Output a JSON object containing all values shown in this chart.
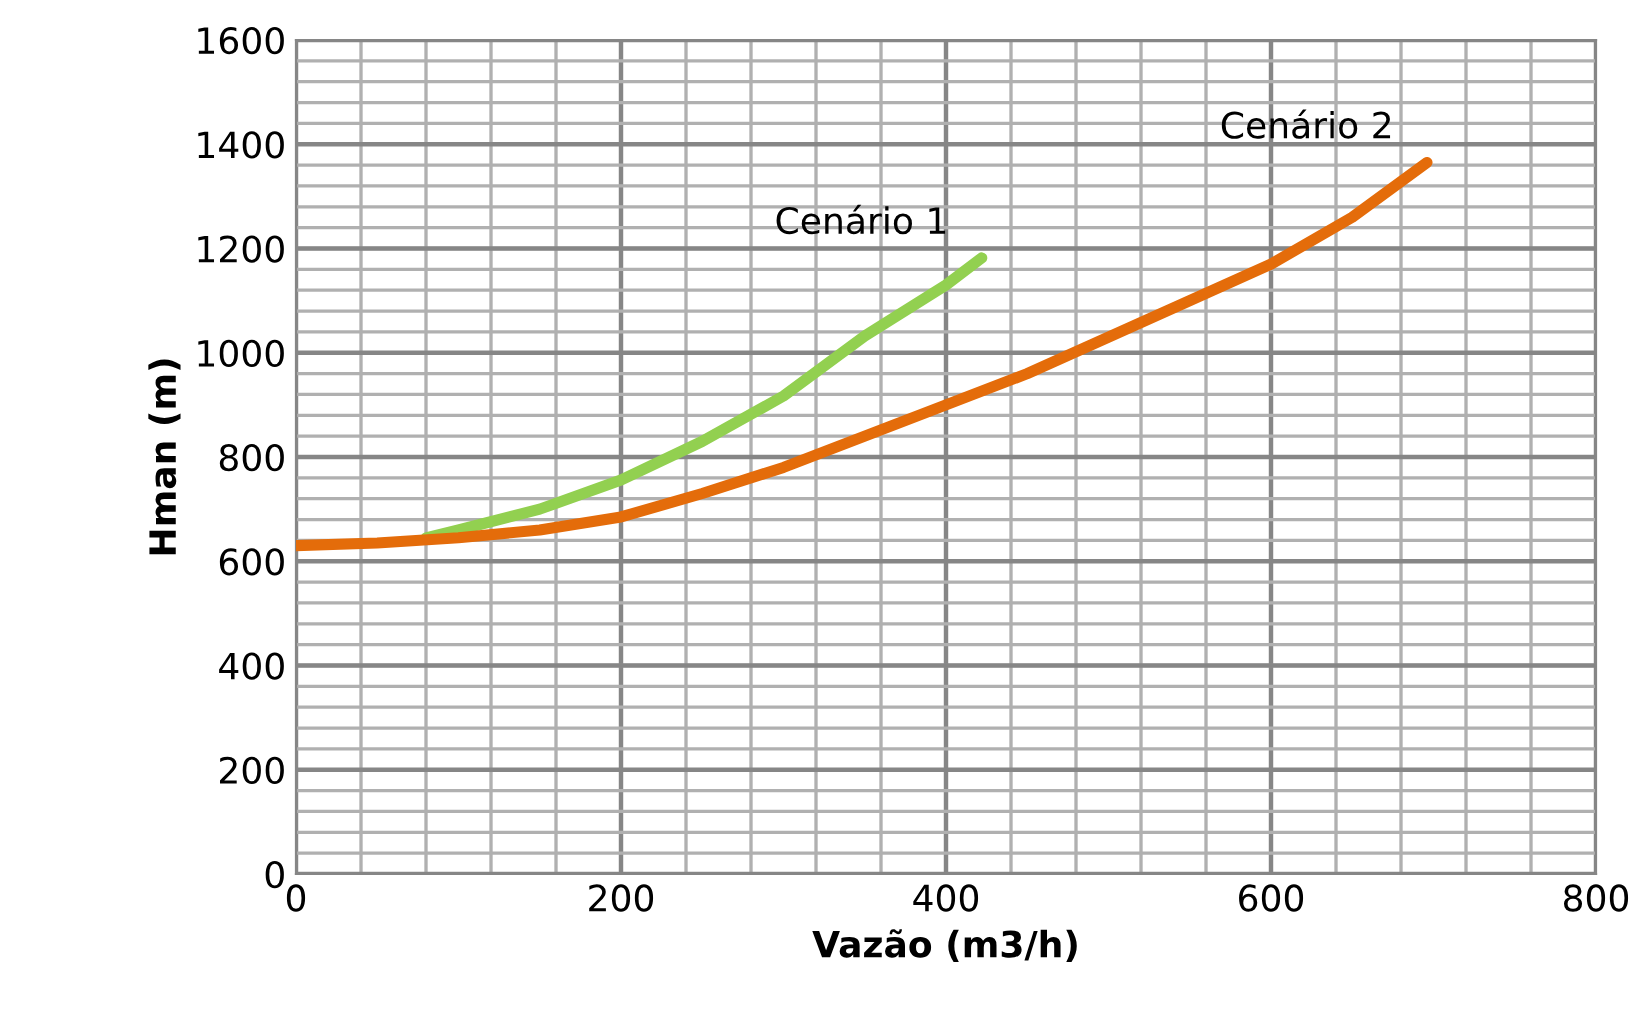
{
  "chart_data": {
    "type": "line",
    "xlabel": "Vazão (m3/h)",
    "ylabel": "Hman (m)",
    "xlim": [
      0,
      800
    ],
    "xticks": [
      0,
      200,
      400,
      600,
      800
    ],
    "ylim": [
      0,
      1600
    ],
    "yticks": [
      0,
      200,
      400,
      600,
      800,
      1000,
      1200,
      1400,
      1600
    ],
    "grid": true,
    "legend": false,
    "marker": "none",
    "line_style": "solid",
    "series": [
      {
        "name": "Cenário 1",
        "color": "#92d050",
        "x": [
          80,
          100,
          150,
          200,
          250,
          300,
          350,
          400,
          422
        ],
        "values": [
          645,
          660,
          700,
          756,
          830,
          917,
          1032,
          1130,
          1182
        ]
      },
      {
        "name": "Cenário 2",
        "color": "#e46c0a",
        "x": [
          0,
          50,
          100,
          150,
          200,
          250,
          300,
          350,
          400,
          450,
          500,
          550,
          600,
          650,
          696
        ],
        "values": [
          630,
          635,
          645,
          660,
          685,
          730,
          780,
          840,
          900,
          960,
          1030,
          1100,
          1170,
          1260,
          1365
        ]
      }
    ]
  }
}
